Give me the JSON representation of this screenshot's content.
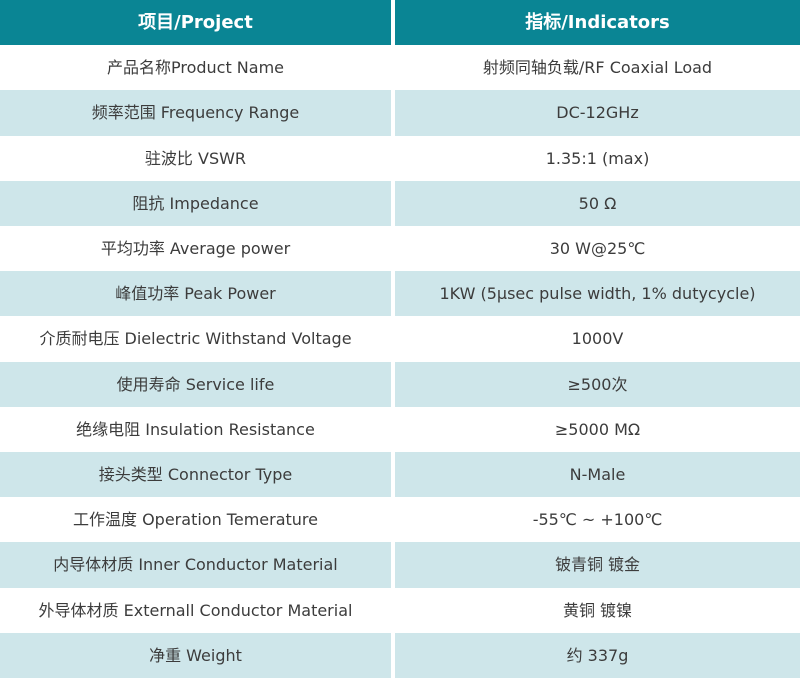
{
  "colors": {
    "header_bg": "#0a8594",
    "header_text": "#ffffff",
    "stripe_bg": "#cee6ea",
    "white_bg": "#ffffff",
    "body_text": "#3c3c3c"
  },
  "table": {
    "header": {
      "project": "项目/Project",
      "indicators": "指标/Indicators"
    },
    "rows": [
      {
        "project": "产品名称Product Name",
        "indicator": "射频同轴负载/RF Coaxial Load"
      },
      {
        "project": "频率范围 Frequency Range",
        "indicator": "DC-12GHz"
      },
      {
        "project": "驻波比 VSWR",
        "indicator": "1.35:1 (max)"
      },
      {
        "project": "阻抗 Impedance",
        "indicator": "50 Ω"
      },
      {
        "project": "平均功率 Average power",
        "indicator": "30 W@25℃"
      },
      {
        "project": "峰值功率 Peak Power",
        "indicator": "1KW (5μsec pulse width, 1% dutycycle)"
      },
      {
        "project": "介质耐电压 Dielectric Withstand Voltage",
        "indicator": "1000V"
      },
      {
        "project": "使用寿命 Service life",
        "indicator": "≥500次"
      },
      {
        "project": "绝缘电阻 Insulation Resistance",
        "indicator": "≥5000 MΩ"
      },
      {
        "project": "接头类型 Connector Type",
        "indicator": "N-Male"
      },
      {
        "project": "工作温度 Operation Temerature",
        "indicator": "-55℃ ~ +100℃"
      },
      {
        "project": "内导体材质 Inner Conductor Material",
        "indicator": "铍青铜 镀金"
      },
      {
        "project": "外导体材质 Externall Conductor Material",
        "indicator": "黄铜 镀镍"
      },
      {
        "project": "净重 Weight",
        "indicator": "约 337g"
      }
    ]
  }
}
